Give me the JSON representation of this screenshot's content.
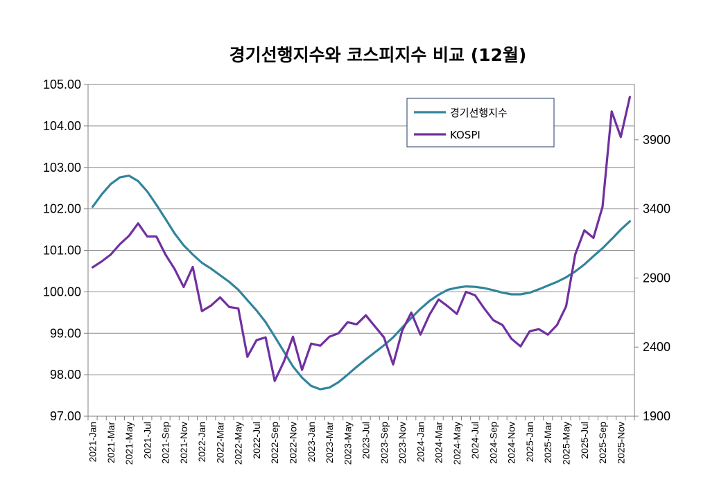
{
  "chart_data": {
    "type": "line",
    "title": "경기선행지수와 코스피지수 비교 (12월)",
    "x": [
      "2021-Jan",
      "2021-Feb",
      "2021-Mar",
      "2021-Apr",
      "2021-May",
      "2021-Jun",
      "2021-Jul",
      "2021-Aug",
      "2021-Sep",
      "2021-Oct",
      "2021-Nov",
      "2021-Dec",
      "2022-Jan",
      "2022-Feb",
      "2022-Mar",
      "2022-Apr",
      "2022-May",
      "2022-Jun",
      "2022-Jul",
      "2022-Aug",
      "2022-Sep",
      "2022-Oct",
      "2022-Nov",
      "2022-Dec",
      "2023-Jan",
      "2023-Feb",
      "2023-Mar",
      "2023-Apr",
      "2023-May",
      "2023-Jun",
      "2023-Jul",
      "2023-Aug",
      "2023-Sep",
      "2023-Oct",
      "2023-Nov",
      "2023-Dec",
      "2024-Jan",
      "2024-Feb",
      "2024-Mar",
      "2024-Apr",
      "2024-May",
      "2024-Jun",
      "2024-Jul",
      "2024-Aug",
      "2024-Sep",
      "2024-Oct",
      "2024-Nov",
      "2024-Dec",
      "2025-Jan",
      "2025-Feb",
      "2025-Mar",
      "2025-Apr",
      "2025-May",
      "2025-Jun",
      "2025-Jul",
      "2025-Aug",
      "2025-Sep",
      "2025-Oct",
      "2025-Nov",
      "2025-Dec"
    ],
    "x_tick_labels": [
      "2021-Jan",
      "2021-Mar",
      "2021-May",
      "2021-Jul",
      "2021-Sep",
      "2021-Nov",
      "2022-Jan",
      "2022-Mar",
      "2022-May",
      "2022-Jul",
      "2022-Sep",
      "2022-Nov",
      "2023-Jan",
      "2023-Mar",
      "2023-May",
      "2023-Jul",
      "2023-Sep",
      "2023-Nov",
      "2024-Jan",
      "2024-Mar",
      "2024-May",
      "2024-Jul",
      "2024-Sep",
      "2024-Nov",
      "2025-Jan",
      "2025-Mar",
      "2025-May",
      "2025-Jul",
      "2025-Sep",
      "2025-Nov"
    ],
    "y_left": {
      "range": [
        97,
        105
      ],
      "ticks": [
        "97.00",
        "98.00",
        "99.00",
        "100.00",
        "101.00",
        "102.00",
        "103.00",
        "104.00",
        "105.00"
      ]
    },
    "y_right": {
      "range": [
        1900,
        4300
      ],
      "ticks": [
        "1900",
        "2400",
        "2900",
        "3400",
        "3900"
      ]
    },
    "grid": true,
    "legend_position": "top-right",
    "series": [
      {
        "name": "경기선행지수",
        "axis": "left",
        "color": "#31859C",
        "values": [
          102.05,
          102.35,
          102.6,
          102.76,
          102.8,
          102.67,
          102.42,
          102.1,
          101.76,
          101.41,
          101.12,
          100.9,
          100.7,
          100.56,
          100.4,
          100.24,
          100.05,
          99.8,
          99.55,
          99.27,
          98.92,
          98.56,
          98.2,
          97.93,
          97.73,
          97.65,
          97.69,
          97.82,
          98.0,
          98.19,
          98.37,
          98.54,
          98.71,
          98.9,
          99.14,
          99.37,
          99.59,
          99.78,
          99.93,
          100.05,
          100.1,
          100.13,
          100.12,
          100.09,
          100.04,
          99.98,
          99.94,
          99.94,
          99.98,
          100.06,
          100.15,
          100.24,
          100.35,
          100.49,
          100.66,
          100.86,
          101.05,
          101.27,
          101.5,
          101.7
        ]
      },
      {
        "name": "KOSPI",
        "axis": "right",
        "color": "#7030A0",
        "values": [
          2977,
          3020,
          3070,
          3145,
          3205,
          3295,
          3200,
          3200,
          3070,
          2965,
          2835,
          2980,
          2660,
          2700,
          2760,
          2690,
          2680,
          2330,
          2450,
          2470,
          2155,
          2295,
          2475,
          2235,
          2425,
          2410,
          2475,
          2500,
          2580,
          2565,
          2630,
          2550,
          2470,
          2275,
          2520,
          2650,
          2490,
          2635,
          2745,
          2695,
          2640,
          2800,
          2775,
          2680,
          2595,
          2560,
          2460,
          2405,
          2515,
          2530,
          2490,
          2560,
          2695,
          3070,
          3245,
          3190,
          3415,
          4105,
          3920,
          4210
        ]
      }
    ]
  }
}
